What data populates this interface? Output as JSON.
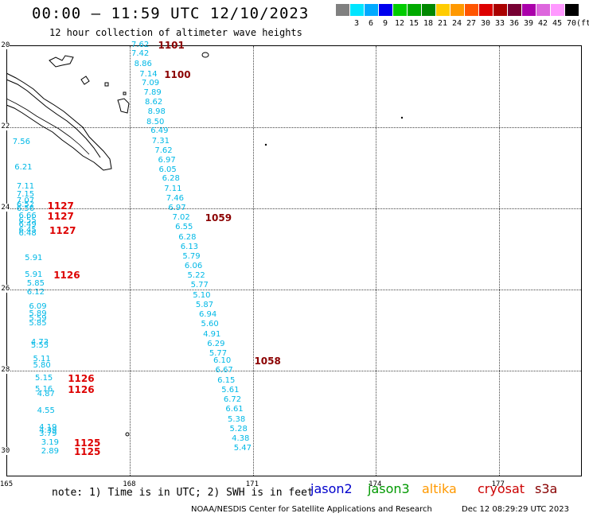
{
  "header": {
    "title": "00:00 – 11:59 UTC 12/10/2023",
    "subtitle": "12 hour collection of altimeter wave heights"
  },
  "legend_scale": {
    "colors": [
      "#808080",
      "#00e5ff",
      "#00aaff",
      "#0000ee",
      "#00cc00",
      "#00aa00",
      "#008800",
      "#ffcc00",
      "#ff9900",
      "#ff5500",
      "#dd0000",
      "#aa0000",
      "#770033",
      "#aa00aa",
      "#dd66dd",
      "#ff99ff",
      "#000000"
    ],
    "labels": [
      "3",
      "6",
      "9",
      "12",
      "15",
      "18",
      "21",
      "24",
      "27",
      "30",
      "33",
      "36",
      "39",
      "42",
      "45",
      "70",
      "(ft)"
    ]
  },
  "map": {
    "lat_labels": [
      "-20",
      "-22",
      "-24",
      "-26",
      "-28",
      "-30"
    ],
    "lon_labels": [
      "165",
      "168",
      "171",
      "174",
      "177"
    ],
    "lon_range": [
      165,
      179.2
    ],
    "lat_range": [
      -20,
      -30.65
    ]
  },
  "track_a_values": [
    {
      "v": "7.62",
      "lon": 168.05,
      "lat": -20.0
    },
    {
      "v": "7.42",
      "lon": 168.05,
      "lat": -20.22
    },
    {
      "v": "8.86",
      "lon": 168.12,
      "lat": -20.47
    },
    {
      "v": "7.14",
      "lon": 168.25,
      "lat": -20.72
    },
    {
      "v": "7.09",
      "lon": 168.3,
      "lat": -20.95
    },
    {
      "v": "7.89",
      "lon": 168.35,
      "lat": -21.17
    },
    {
      "v": "8.62",
      "lon": 168.38,
      "lat": -21.42
    },
    {
      "v": "8.98",
      "lon": 168.45,
      "lat": -21.65
    },
    {
      "v": "8.50",
      "lon": 168.42,
      "lat": -21.9
    },
    {
      "v": "6.49",
      "lon": 168.52,
      "lat": -22.12
    },
    {
      "v": "7.31",
      "lon": 168.55,
      "lat": -22.37
    },
    {
      "v": "7.62",
      "lon": 168.62,
      "lat": -22.6
    },
    {
      "v": "6.97",
      "lon": 168.7,
      "lat": -22.85
    },
    {
      "v": "6.05",
      "lon": 168.72,
      "lat": -23.07
    },
    {
      "v": "6.28",
      "lon": 168.8,
      "lat": -23.3
    },
    {
      "v": "7.11",
      "lon": 168.85,
      "lat": -23.55
    },
    {
      "v": "7.46",
      "lon": 168.9,
      "lat": -23.78
    },
    {
      "v": "6.97",
      "lon": 168.95,
      "lat": -24.02
    },
    {
      "v": "7.02",
      "lon": 169.05,
      "lat": -24.26
    },
    {
      "v": "6.55",
      "lon": 169.12,
      "lat": -24.5
    },
    {
      "v": "6.28",
      "lon": 169.2,
      "lat": -24.74
    },
    {
      "v": "6.13",
      "lon": 169.25,
      "lat": -24.98
    },
    {
      "v": "5.79",
      "lon": 169.3,
      "lat": -25.22
    },
    {
      "v": "6.06",
      "lon": 169.35,
      "lat": -25.46
    },
    {
      "v": "5.22",
      "lon": 169.42,
      "lat": -25.68
    },
    {
      "v": "5.77",
      "lon": 169.5,
      "lat": -25.93
    },
    {
      "v": "5.10",
      "lon": 169.55,
      "lat": -26.17
    },
    {
      "v": "5.87",
      "lon": 169.62,
      "lat": -26.41
    },
    {
      "v": "6.94",
      "lon": 169.7,
      "lat": -26.65
    },
    {
      "v": "5.60",
      "lon": 169.75,
      "lat": -26.89
    },
    {
      "v": "4.91",
      "lon": 169.8,
      "lat": -27.13
    },
    {
      "v": "6.29",
      "lon": 169.9,
      "lat": -27.37
    },
    {
      "v": "5.77",
      "lon": 169.95,
      "lat": -27.61
    },
    {
      "v": "6.10",
      "lon": 170.05,
      "lat": -27.79
    },
    {
      "v": "6.67",
      "lon": 170.1,
      "lat": -28.03
    },
    {
      "v": "6.15",
      "lon": 170.15,
      "lat": -28.27
    },
    {
      "v": "5.61",
      "lon": 170.25,
      "lat": -28.51
    },
    {
      "v": "6.72",
      "lon": 170.3,
      "lat": -28.75
    },
    {
      "v": "6.61",
      "lon": 170.35,
      "lat": -28.99
    },
    {
      "v": "5.38",
      "lon": 170.4,
      "lat": -29.23
    },
    {
      "v": "5.28",
      "lon": 170.45,
      "lat": -29.47
    },
    {
      "v": "4.38",
      "lon": 170.5,
      "lat": -29.7
    },
    {
      "v": "5.47",
      "lon": 170.55,
      "lat": -29.94
    }
  ],
  "track_b_values": [
    {
      "v": "7.56",
      "lon": 165.15,
      "lat": -22.4
    },
    {
      "v": "6.21",
      "lon": 165.2,
      "lat": -23.03
    },
    {
      "v": "7.11",
      "lon": 165.25,
      "lat": -23.5
    },
    {
      "v": "7.15",
      "lon": 165.25,
      "lat": -23.68
    },
    {
      "v": "7.07",
      "lon": 165.25,
      "lat": -23.85
    },
    {
      "v": "6.52",
      "lon": 165.25,
      "lat": -23.95
    },
    {
      "v": "6.56",
      "lon": 165.25,
      "lat": -24.05
    },
    {
      "v": "6.66",
      "lon": 165.3,
      "lat": -24.21
    },
    {
      "v": "6.55",
      "lon": 165.3,
      "lat": -24.33
    },
    {
      "v": "6.49",
      "lon": 165.3,
      "lat": -24.43
    },
    {
      "v": "6.45",
      "lon": 165.3,
      "lat": -24.57
    },
    {
      "v": "6.48",
      "lon": 165.3,
      "lat": -24.65
    },
    {
      "v": "5.91",
      "lon": 165.45,
      "lat": -25.26
    },
    {
      "v": "5.91",
      "lon": 165.45,
      "lat": -25.67
    },
    {
      "v": "5.85",
      "lon": 165.5,
      "lat": -25.88
    },
    {
      "v": "6.12",
      "lon": 165.5,
      "lat": -26.09
    },
    {
      "v": "6.09",
      "lon": 165.55,
      "lat": -26.45
    },
    {
      "v": "5.89",
      "lon": 165.55,
      "lat": -26.63
    },
    {
      "v": "5.59",
      "lon": 165.55,
      "lat": -26.75
    },
    {
      "v": "5.85",
      "lon": 165.55,
      "lat": -26.86
    },
    {
      "v": "4.73",
      "lon": 165.6,
      "lat": -27.33
    },
    {
      "v": "5.55",
      "lon": 165.6,
      "lat": -27.42
    },
    {
      "v": "5.11",
      "lon": 165.65,
      "lat": -27.75
    },
    {
      "v": "5.80",
      "lon": 165.65,
      "lat": -27.9
    },
    {
      "v": "5.15",
      "lon": 165.7,
      "lat": -28.22
    },
    {
      "v": "5.16",
      "lon": 165.7,
      "lat": -28.5
    },
    {
      "v": "4.87",
      "lon": 165.75,
      "lat": -28.62
    },
    {
      "v": "4.55",
      "lon": 165.75,
      "lat": -29.03
    },
    {
      "v": "4.19",
      "lon": 165.8,
      "lat": -29.44
    },
    {
      "v": "4.39",
      "lon": 165.8,
      "lat": -29.52
    },
    {
      "v": "3.79",
      "lon": 165.8,
      "lat": -29.6
    },
    {
      "v": "3.19",
      "lon": 165.85,
      "lat": -29.8
    },
    {
      "v": "2.89",
      "lon": 165.85,
      "lat": -30.02
    }
  ],
  "time_labels": [
    {
      "t": "1101",
      "lon": 168.7,
      "lat": -20.0,
      "color": "#8b0000"
    },
    {
      "t": "1100",
      "lon": 168.85,
      "lat": -20.72,
      "color": "#8b0000"
    },
    {
      "t": "1059",
      "lon": 169.85,
      "lat": -24.26,
      "color": "#8b0000"
    },
    {
      "t": "1058",
      "lon": 171.05,
      "lat": -27.79,
      "color": "#8b0000"
    },
    {
      "t": "1127",
      "lon": 166.0,
      "lat": -23.97,
      "color": "#dd0000"
    },
    {
      "t": "1127",
      "lon": 166.0,
      "lat": -24.21,
      "color": "#dd0000"
    },
    {
      "t": "1127",
      "lon": 166.05,
      "lat": -24.57,
      "color": "#dd0000"
    },
    {
      "t": "1126",
      "lon": 166.15,
      "lat": -25.67,
      "color": "#dd0000"
    },
    {
      "t": "1126",
      "lon": 166.5,
      "lat": -28.22,
      "color": "#dd0000"
    },
    {
      "t": "1126",
      "lon": 166.5,
      "lat": -28.5,
      "color": "#dd0000"
    },
    {
      "t": "1125",
      "lon": 166.65,
      "lat": -29.8,
      "color": "#dd0000"
    },
    {
      "t": "1125",
      "lon": 166.65,
      "lat": -30.02,
      "color": "#dd0000"
    }
  ],
  "footer": {
    "note": "note: 1) Time is in UTC; 2) SWH is in feet",
    "satellites": [
      {
        "name": "jason2",
        "color": "#0000cc"
      },
      {
        "name": "jason3",
        "color": "#009900"
      },
      {
        "name": "altika",
        "color": "#ff9900"
      },
      {
        "name": "cryosat",
        "color": "#cc0000"
      },
      {
        "name": "s3a",
        "color": "#880000"
      }
    ],
    "credit": "NOAA/NESDIS Center for Satellite Applications and Research",
    "timestamp": "Dec 12 08:29:29 UTC 2023"
  }
}
